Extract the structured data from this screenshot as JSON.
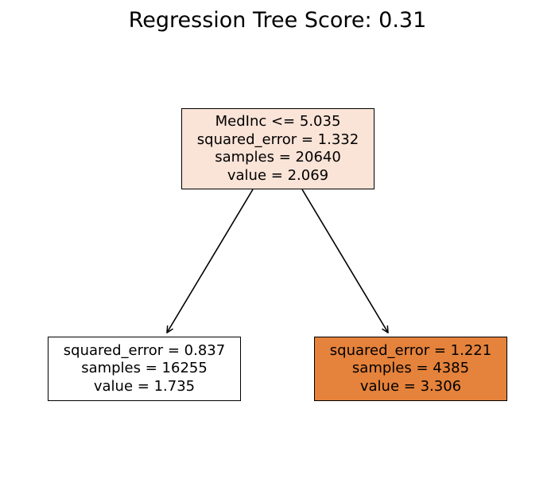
{
  "title": "Regression Tree Score: 0.31",
  "nodes": {
    "root": {
      "split": "MedInc <= 5.035",
      "squared_error": "squared_error = 1.332",
      "samples": "samples = 20640",
      "value": "value = 2.069",
      "fill": "#fae3d7"
    },
    "left": {
      "squared_error": "squared_error = 0.837",
      "samples": "samples = 16255",
      "value": "value = 1.735",
      "fill": "#ffffff"
    },
    "right": {
      "squared_error": "squared_error = 1.221",
      "samples": "samples = 4385",
      "value": "value = 3.306",
      "fill": "#e5823b"
    }
  },
  "colors": {
    "border": "#000000",
    "edge": "#000000"
  }
}
